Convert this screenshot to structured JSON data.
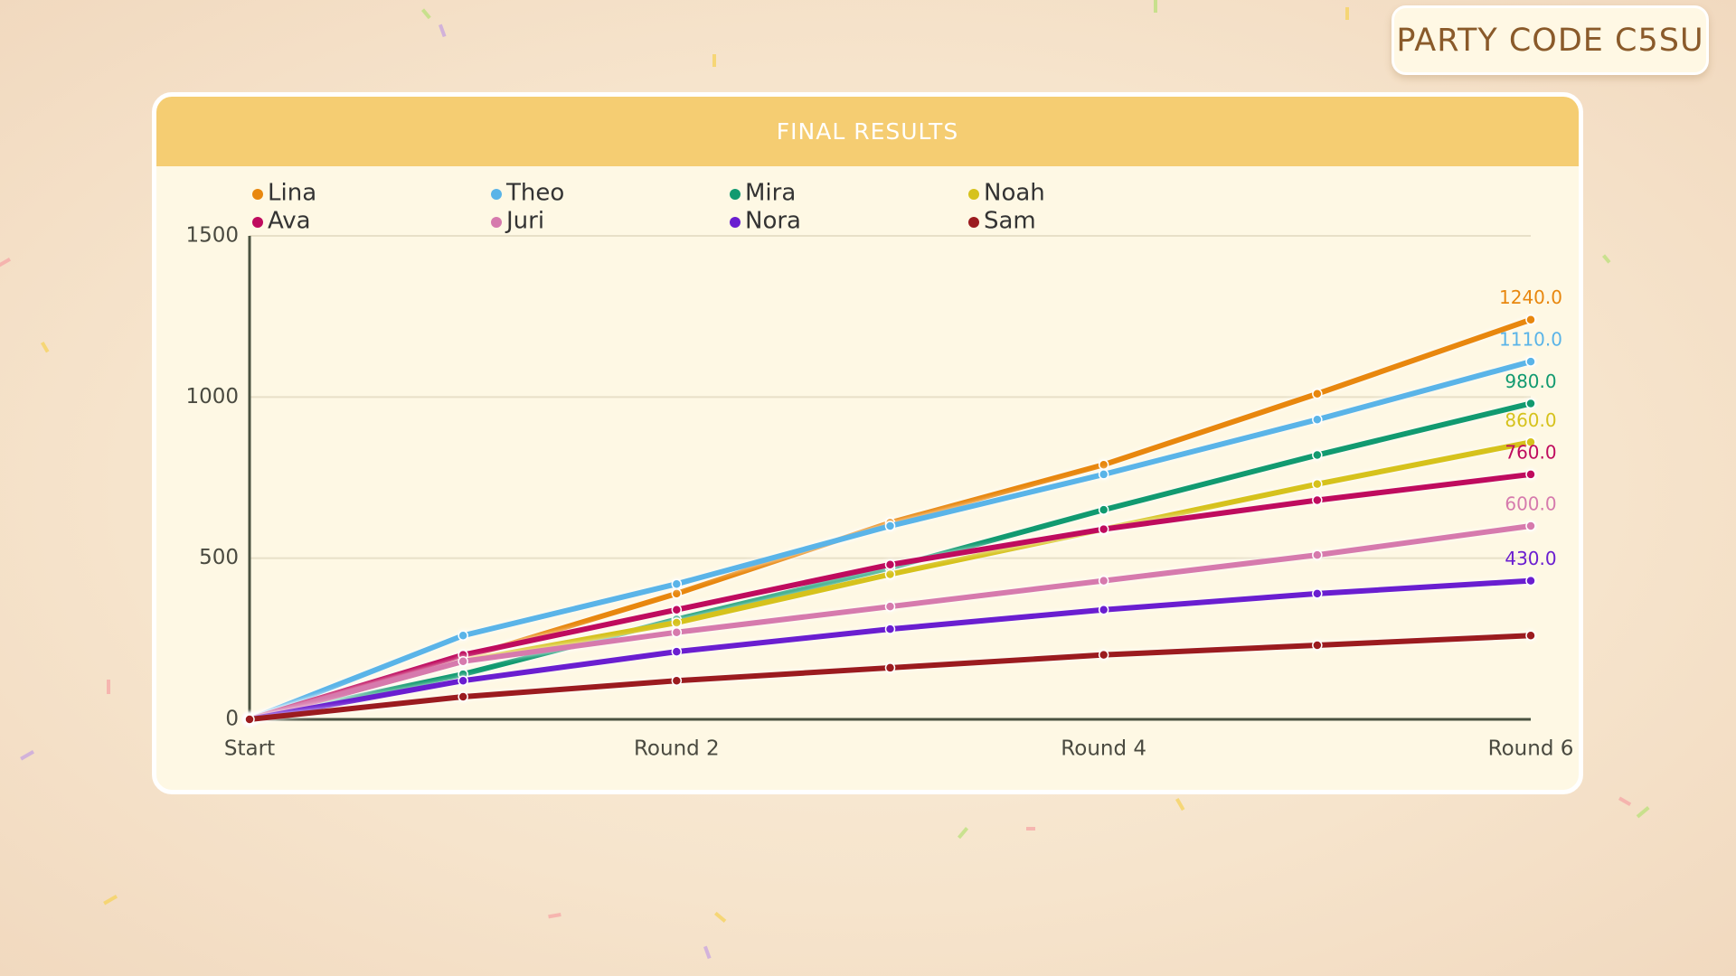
{
  "party_code": "PARTY CODE C5SU",
  "chart_data": {
    "type": "line",
    "title": "FINAL RESULTS",
    "categories": [
      "Start",
      null,
      "Round 2",
      null,
      "Round 4",
      null,
      "Round 6"
    ],
    "ylim": [
      0,
      1500
    ],
    "yticks": [
      0,
      500,
      1000,
      1500
    ],
    "grid": true,
    "series": [
      {
        "name": "Lina",
        "color": "#e8870e",
        "values": [
          0,
          190,
          390,
          610,
          790,
          1010,
          1240
        ],
        "value_labels": [
          null,
          null,
          null,
          null,
          null,
          null,
          "1240.0"
        ]
      },
      {
        "name": "Theo",
        "color": "#5ab4e8",
        "values": [
          0,
          260,
          420,
          600,
          760,
          930,
          1110
        ],
        "value_labels": [
          null,
          null,
          null,
          null,
          null,
          null,
          "1110.0"
        ]
      },
      {
        "name": "Mira",
        "color": "#119a70",
        "values": [
          0,
          140,
          310,
          470,
          650,
          820,
          980
        ],
        "value_labels": [
          null,
          null,
          null,
          null,
          null,
          null,
          "980.0"
        ]
      },
      {
        "name": "Noah",
        "color": "#d6c21c",
        "values": [
          0,
          180,
          300,
          450,
          590,
          730,
          860
        ],
        "value_labels": [
          null,
          null,
          null,
          null,
          null,
          null,
          "860.0"
        ]
      },
      {
        "name": "Ava",
        "color": "#bf0b5e",
        "values": [
          0,
          200,
          340,
          480,
          590,
          680,
          760
        ],
        "value_labels": [
          null,
          null,
          null,
          null,
          null,
          null,
          "760.0"
        ]
      },
      {
        "name": "Juri",
        "color": "#d67aad",
        "values": [
          0,
          180,
          270,
          350,
          430,
          510,
          600
        ],
        "value_labels": [
          null,
          null,
          null,
          null,
          null,
          null,
          "600.0"
        ]
      },
      {
        "name": "Nora",
        "color": "#6a1ed0",
        "values": [
          0,
          120,
          210,
          280,
          340,
          390,
          430
        ],
        "value_labels": [
          null,
          null,
          null,
          null,
          null,
          null,
          "430.0"
        ]
      },
      {
        "name": "Sam",
        "color": "#9b1b1f",
        "values": [
          0,
          70,
          120,
          160,
          200,
          230,
          260
        ]
      }
    ]
  }
}
